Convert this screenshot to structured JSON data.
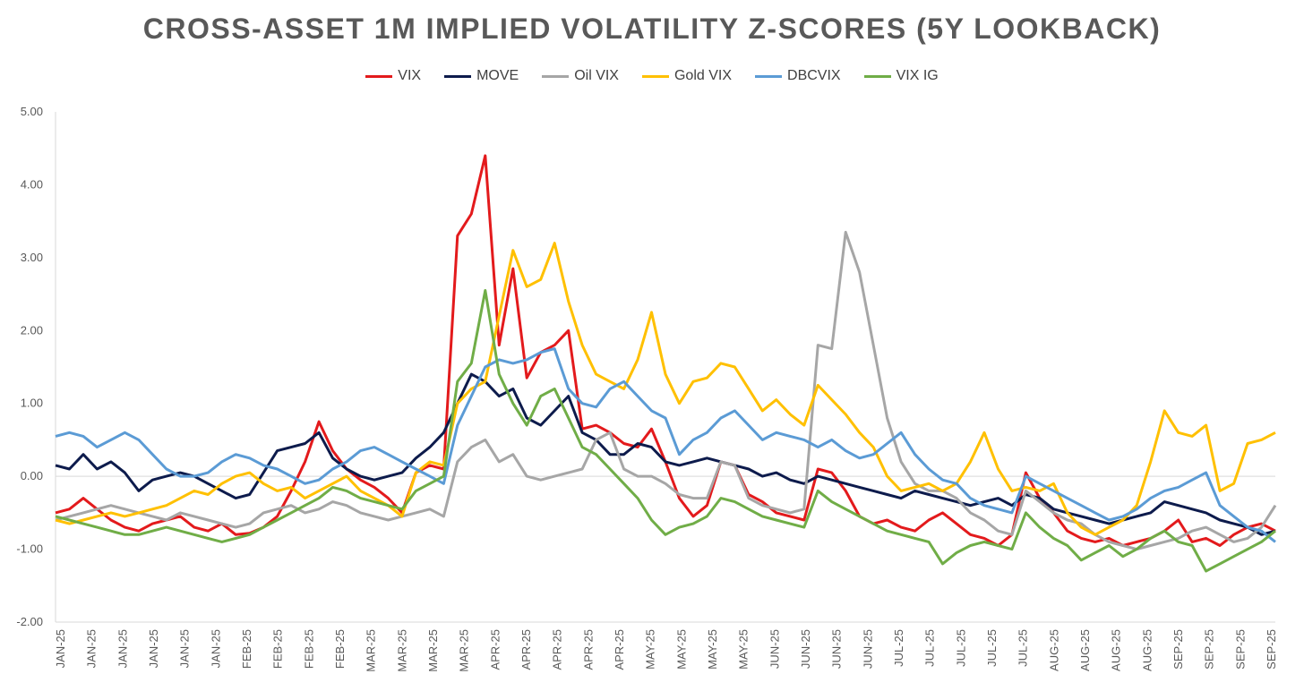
{
  "chart_data": {
    "type": "line",
    "title": "CROSS-ASSET 1M IMPLIED VOLATILITY Z-SCORES (5Y LOOKBACK)",
    "xlabel": "",
    "ylabel": "",
    "ylim": [
      -2,
      5
    ],
    "yticks": [
      "5.00",
      "4.00",
      "3.00",
      "2.00",
      "1.00",
      "0.00",
      "-1.00",
      "-2.00"
    ],
    "xticks": [
      "JAN-25",
      "JAN-25",
      "JAN-25",
      "JAN-25",
      "JAN-25",
      "JAN-25",
      "FEB-25",
      "FEB-25",
      "FEB-25",
      "FEB-25",
      "MAR-25",
      "MAR-25",
      "MAR-25",
      "MAR-25",
      "APR-25",
      "APR-25",
      "APR-25",
      "APR-25",
      "APR-25",
      "MAY-25",
      "MAY-25",
      "MAY-25",
      "MAY-25",
      "JUN-25",
      "JUN-25",
      "JUN-25",
      "JUN-25",
      "JUL-25",
      "JUL-25",
      "JUL-25",
      "JUL-25",
      "JUL-25",
      "AUG-25",
      "AUG-25",
      "AUG-25",
      "AUG-25",
      "SEP-25",
      "SEP-25",
      "SEP-25",
      "SEP-25"
    ],
    "legend_position": "top",
    "grid": false,
    "x": [
      0,
      3,
      6,
      9,
      12,
      15,
      18,
      21,
      24,
      27,
      30,
      33,
      36,
      39,
      42,
      45,
      48,
      51,
      54,
      57,
      60,
      63,
      66,
      69,
      72,
      75,
      78,
      81,
      84,
      87,
      90,
      93,
      96,
      99,
      102,
      105,
      108,
      111,
      114,
      117,
      120,
      123,
      126,
      129,
      132,
      135,
      138,
      141,
      144,
      147,
      150,
      153,
      156,
      159,
      162,
      165,
      168,
      171,
      174,
      177,
      180,
      183,
      186,
      189,
      192,
      195,
      198,
      201,
      204,
      207,
      210,
      213,
      216,
      219,
      222,
      225,
      228,
      231,
      234,
      237,
      240,
      243,
      246,
      249,
      252,
      255,
      258,
      261,
      264
    ],
    "series": [
      {
        "name": "VIX",
        "color": "#e31a1c",
        "values": [
          -0.5,
          -0.45,
          -0.3,
          -0.45,
          -0.6,
          -0.7,
          -0.75,
          -0.65,
          -0.6,
          -0.55,
          -0.7,
          -0.75,
          -0.65,
          -0.8,
          -0.78,
          -0.7,
          -0.55,
          -0.2,
          0.2,
          0.75,
          0.35,
          0.1,
          -0.05,
          -0.15,
          -0.3,
          -0.5,
          0.05,
          0.15,
          0.1,
          3.3,
          3.6,
          4.4,
          1.8,
          2.85,
          1.35,
          1.7,
          1.8,
          2.0,
          0.65,
          0.7,
          0.6,
          0.45,
          0.4,
          0.65,
          0.2,
          -0.3,
          -0.55,
          -0.4,
          0.2,
          0.15,
          -0.25,
          -0.35,
          -0.5,
          -0.55,
          -0.6,
          0.1,
          0.05,
          -0.2,
          -0.55,
          -0.65,
          -0.6,
          -0.7,
          -0.75,
          -0.6,
          -0.5,
          -0.65,
          -0.8,
          -0.85,
          -0.95,
          -0.8,
          0.05,
          -0.3,
          -0.5,
          -0.75,
          -0.85,
          -0.9,
          -0.85,
          -0.95,
          -0.9,
          -0.85,
          -0.75,
          -0.6,
          -0.9,
          -0.85,
          -0.95,
          -0.8,
          -0.7,
          -0.65,
          -0.75
        ]
      },
      {
        "name": "MOVE",
        "color": "#0d1b4c",
        "values": [
          0.15,
          0.1,
          0.3,
          0.1,
          0.2,
          0.05,
          -0.2,
          -0.05,
          0.0,
          0.05,
          0.0,
          -0.1,
          -0.2,
          -0.3,
          -0.25,
          0.05,
          0.35,
          0.4,
          0.45,
          0.6,
          0.25,
          0.1,
          0.0,
          -0.05,
          0.0,
          0.05,
          0.25,
          0.4,
          0.6,
          1.0,
          1.4,
          1.3,
          1.1,
          1.2,
          0.8,
          0.7,
          0.9,
          1.1,
          0.6,
          0.5,
          0.3,
          0.3,
          0.45,
          0.4,
          0.2,
          0.15,
          0.2,
          0.25,
          0.2,
          0.15,
          0.1,
          0.0,
          0.05,
          -0.05,
          -0.1,
          0.0,
          -0.05,
          -0.1,
          -0.15,
          -0.2,
          -0.25,
          -0.3,
          -0.2,
          -0.25,
          -0.3,
          -0.35,
          -0.4,
          -0.35,
          -0.3,
          -0.4,
          -0.25,
          -0.3,
          -0.45,
          -0.5,
          -0.55,
          -0.6,
          -0.65,
          -0.6,
          -0.55,
          -0.5,
          -0.35,
          -0.4,
          -0.45,
          -0.5,
          -0.6,
          -0.65,
          -0.7,
          -0.8,
          -0.75
        ]
      },
      {
        "name": "Oil VIX",
        "color": "#a6a6a6",
        "values": [
          -0.6,
          -0.55,
          -0.5,
          -0.45,
          -0.4,
          -0.45,
          -0.5,
          -0.55,
          -0.6,
          -0.5,
          -0.55,
          -0.6,
          -0.65,
          -0.7,
          -0.65,
          -0.5,
          -0.45,
          -0.4,
          -0.5,
          -0.45,
          -0.35,
          -0.4,
          -0.5,
          -0.55,
          -0.6,
          -0.55,
          -0.5,
          -0.45,
          -0.55,
          0.2,
          0.4,
          0.5,
          0.2,
          0.3,
          0.0,
          -0.05,
          0.0,
          0.05,
          0.1,
          0.5,
          0.6,
          0.1,
          0.0,
          0.0,
          -0.1,
          -0.25,
          -0.3,
          -0.3,
          0.2,
          0.15,
          -0.3,
          -0.4,
          -0.45,
          -0.5,
          -0.45,
          1.8,
          1.75,
          3.35,
          2.8,
          1.8,
          0.8,
          0.2,
          -0.1,
          -0.2,
          -0.2,
          -0.3,
          -0.5,
          -0.6,
          -0.75,
          -0.8,
          -0.2,
          -0.35,
          -0.5,
          -0.6,
          -0.65,
          -0.8,
          -0.9,
          -0.95,
          -1.0,
          -0.95,
          -0.9,
          -0.85,
          -0.75,
          -0.7,
          -0.8,
          -0.9,
          -0.85,
          -0.7,
          -0.4
        ]
      },
      {
        "name": "Gold VIX",
        "color": "#ffc000",
        "values": [
          -0.6,
          -0.65,
          -0.6,
          -0.55,
          -0.5,
          -0.55,
          -0.5,
          -0.45,
          -0.4,
          -0.3,
          -0.2,
          -0.25,
          -0.1,
          0.0,
          0.05,
          -0.1,
          -0.2,
          -0.15,
          -0.3,
          -0.2,
          -0.1,
          0.0,
          -0.2,
          -0.3,
          -0.4,
          -0.55,
          0.05,
          0.2,
          0.15,
          1.0,
          1.2,
          1.3,
          2.2,
          3.1,
          2.6,
          2.7,
          3.2,
          2.4,
          1.8,
          1.4,
          1.3,
          1.2,
          1.6,
          2.25,
          1.4,
          1.0,
          1.3,
          1.35,
          1.55,
          1.5,
          1.2,
          0.9,
          1.05,
          0.85,
          0.7,
          1.25,
          1.05,
          0.85,
          0.6,
          0.4,
          0.0,
          -0.2,
          -0.15,
          -0.1,
          -0.2,
          -0.1,
          0.2,
          0.6,
          0.1,
          -0.2,
          -0.15,
          -0.2,
          -0.1,
          -0.5,
          -0.7,
          -0.8,
          -0.7,
          -0.6,
          -0.4,
          0.2,
          0.9,
          0.6,
          0.55,
          0.7,
          -0.2,
          -0.1,
          0.45,
          0.5,
          0.6
        ]
      },
      {
        "name": "DBCVIX",
        "color": "#5b9bd5",
        "values": [
          0.55,
          0.6,
          0.55,
          0.4,
          0.5,
          0.6,
          0.5,
          0.3,
          0.1,
          0.0,
          0.0,
          0.05,
          0.2,
          0.3,
          0.25,
          0.15,
          0.1,
          0.0,
          -0.1,
          -0.05,
          0.1,
          0.2,
          0.35,
          0.4,
          0.3,
          0.2,
          0.1,
          0.0,
          -0.1,
          0.7,
          1.1,
          1.5,
          1.6,
          1.55,
          1.6,
          1.7,
          1.75,
          1.2,
          1.0,
          0.95,
          1.2,
          1.3,
          1.1,
          0.9,
          0.8,
          0.3,
          0.5,
          0.6,
          0.8,
          0.9,
          0.7,
          0.5,
          0.6,
          0.55,
          0.5,
          0.4,
          0.5,
          0.35,
          0.25,
          0.3,
          0.45,
          0.6,
          0.3,
          0.1,
          -0.05,
          -0.1,
          -0.3,
          -0.4,
          -0.45,
          -0.5,
          0.0,
          -0.1,
          -0.2,
          -0.3,
          -0.4,
          -0.5,
          -0.6,
          -0.55,
          -0.45,
          -0.3,
          -0.2,
          -0.15,
          -0.05,
          0.05,
          -0.4,
          -0.55,
          -0.7,
          -0.75,
          -0.9
        ]
      },
      {
        "name": "VIX IG",
        "color": "#70ad47",
        "values": [
          -0.55,
          -0.6,
          -0.65,
          -0.7,
          -0.75,
          -0.8,
          -0.8,
          -0.75,
          -0.7,
          -0.75,
          -0.8,
          -0.85,
          -0.9,
          -0.85,
          -0.8,
          -0.7,
          -0.6,
          -0.5,
          -0.4,
          -0.3,
          -0.15,
          -0.2,
          -0.3,
          -0.35,
          -0.4,
          -0.45,
          -0.2,
          -0.1,
          0.0,
          1.3,
          1.55,
          2.55,
          1.4,
          1.0,
          0.7,
          1.1,
          1.2,
          0.8,
          0.4,
          0.3,
          0.1,
          -0.1,
          -0.3,
          -0.6,
          -0.8,
          -0.7,
          -0.65,
          -0.55,
          -0.3,
          -0.35,
          -0.45,
          -0.55,
          -0.6,
          -0.65,
          -0.7,
          -0.2,
          -0.35,
          -0.45,
          -0.55,
          -0.65,
          -0.75,
          -0.8,
          -0.85,
          -0.9,
          -1.2,
          -1.05,
          -0.95,
          -0.9,
          -0.95,
          -1.0,
          -0.5,
          -0.7,
          -0.85,
          -0.95,
          -1.15,
          -1.05,
          -0.95,
          -1.1,
          -1.0,
          -0.85,
          -0.75,
          -0.9,
          -0.95,
          -1.3,
          -1.2,
          -1.1,
          -1.0,
          -0.9,
          -0.75
        ]
      }
    ]
  }
}
